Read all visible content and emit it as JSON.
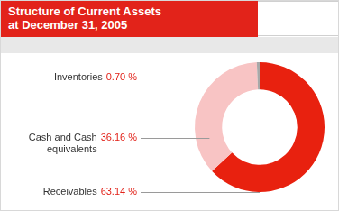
{
  "chart_data": {
    "type": "doughnut",
    "title": "Structure of Current Assets at December 31, 2005",
    "categories": [
      "Receivables",
      "Cash and Cash equivalents",
      "Inventories"
    ],
    "values": [
      63.14,
      36.16,
      0.7
    ],
    "value_labels": [
      "63.14 %",
      "36.16 %",
      "0.70 %"
    ],
    "colors": [
      "#e8210f",
      "#f8c4c4",
      "#a8a8a8"
    ],
    "data_labels": true
  }
}
